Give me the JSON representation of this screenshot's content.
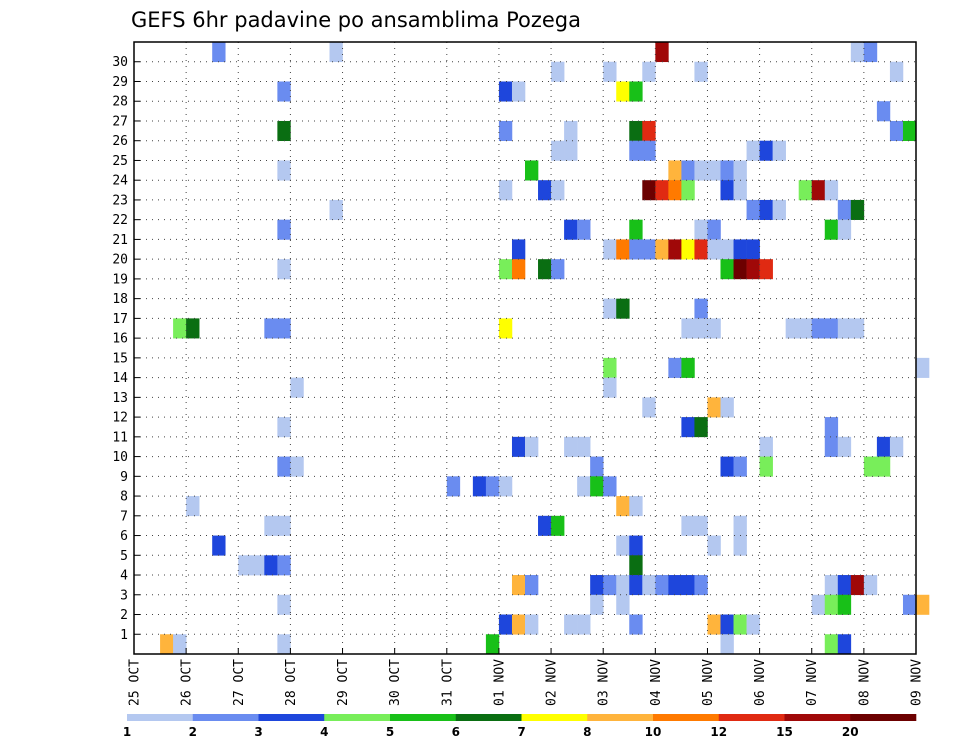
{
  "chart_data": {
    "type": "heatmap",
    "title": "GEFS 6hr padavine po ansamblima Pozega",
    "x_tick_labels": [
      "25 OCT",
      "26 OCT",
      "27 OCT",
      "28 OCT",
      "29 OCT",
      "30 OCT",
      "31 OCT",
      "01 NOV",
      "02 NOV",
      "03 NOV",
      "04 NOV",
      "05 NOV",
      "06 NOV",
      "07 NOV",
      "08 NOV",
      "09 NOV"
    ],
    "y_tick_labels": [
      "1",
      "2",
      "3",
      "4",
      "5",
      "6",
      "7",
      "8",
      "9",
      "10",
      "11",
      "12",
      "13",
      "14",
      "15",
      "16",
      "17",
      "18",
      "19",
      "20",
      "21",
      "22",
      "23",
      "24",
      "25",
      "26",
      "27",
      "28",
      "29",
      "30"
    ],
    "steps_per_day": 4,
    "grid": true,
    "colorbar": {
      "bounds": [
        1,
        2,
        3,
        4,
        5,
        6,
        7,
        8,
        10,
        12,
        15,
        20
      ],
      "labels": [
        "1",
        "2",
        "3",
        "4",
        "5",
        "6",
        "7",
        "8",
        "10",
        "12",
        "15",
        "20"
      ],
      "colors": [
        "#b4c8f0",
        "#6a8cf0",
        "#1e46dc",
        "#78ee5a",
        "#18c018",
        "#0a6e12",
        "#ffff00",
        "#ffb43c",
        "#ff7a00",
        "#e02a12",
        "#a00808",
        "#6c0000"
      ]
    },
    "cells": [
      {
        "member": 30,
        "step": 6,
        "level": 1
      },
      {
        "member": 30,
        "step": 15,
        "level": 0
      },
      {
        "member": 30,
        "step": 40,
        "level": 10
      },
      {
        "member": 30,
        "step": 55,
        "level": 0
      },
      {
        "member": 30,
        "step": 56,
        "level": 1
      },
      {
        "member": 29,
        "step": 32,
        "level": 0
      },
      {
        "member": 29,
        "step": 36,
        "level": 0
      },
      {
        "member": 29,
        "step": 39,
        "level": 0
      },
      {
        "member": 29,
        "step": 43,
        "level": 0
      },
      {
        "member": 29,
        "step": 58,
        "level": 0
      },
      {
        "member": 28,
        "step": 11,
        "level": 1
      },
      {
        "member": 28,
        "step": 28,
        "level": 2
      },
      {
        "member": 28,
        "step": 29,
        "level": 0
      },
      {
        "member": 28,
        "step": 37,
        "level": 6
      },
      {
        "member": 28,
        "step": 38,
        "level": 4
      },
      {
        "member": 27,
        "step": 57,
        "level": 1
      },
      {
        "member": 26,
        "step": 11,
        "level": 5
      },
      {
        "member": 26,
        "step": 28,
        "level": 1
      },
      {
        "member": 26,
        "step": 33,
        "level": 0
      },
      {
        "member": 26,
        "step": 38,
        "level": 5
      },
      {
        "member": 26,
        "step": 39,
        "level": 9
      },
      {
        "member": 26,
        "step": 58,
        "level": 1
      },
      {
        "member": 26,
        "step": 59,
        "level": 4
      },
      {
        "member": 25,
        "step": 32,
        "level": 0
      },
      {
        "member": 25,
        "step": 33,
        "level": 0
      },
      {
        "member": 25,
        "step": 38,
        "level": 1
      },
      {
        "member": 25,
        "step": 39,
        "level": 1
      },
      {
        "member": 25,
        "step": 47,
        "level": 0
      },
      {
        "member": 25,
        "step": 48,
        "level": 2
      },
      {
        "member": 25,
        "step": 49,
        "level": 0
      },
      {
        "member": 24,
        "step": 11,
        "level": 0
      },
      {
        "member": 24,
        "step": 30,
        "level": 4
      },
      {
        "member": 24,
        "step": 41,
        "level": 7
      },
      {
        "member": 24,
        "step": 42,
        "level": 1
      },
      {
        "member": 24,
        "step": 43,
        "level": 0
      },
      {
        "member": 24,
        "step": 44,
        "level": 0
      },
      {
        "member": 24,
        "step": 45,
        "level": 1
      },
      {
        "member": 24,
        "step": 46,
        "level": 0
      },
      {
        "member": 23,
        "step": 28,
        "level": 0
      },
      {
        "member": 23,
        "step": 31,
        "level": 2
      },
      {
        "member": 23,
        "step": 32,
        "level": 0
      },
      {
        "member": 23,
        "step": 39,
        "level": 11
      },
      {
        "member": 23,
        "step": 40,
        "level": 9
      },
      {
        "member": 23,
        "step": 41,
        "level": 8
      },
      {
        "member": 23,
        "step": 42,
        "level": 3
      },
      {
        "member": 23,
        "step": 45,
        "level": 2
      },
      {
        "member": 23,
        "step": 46,
        "level": 0
      },
      {
        "member": 23,
        "step": 51,
        "level": 3
      },
      {
        "member": 23,
        "step": 52,
        "level": 10
      },
      {
        "member": 23,
        "step": 53,
        "level": 0
      },
      {
        "member": 22,
        "step": 15,
        "level": 0
      },
      {
        "member": 22,
        "step": 47,
        "level": 1
      },
      {
        "member": 22,
        "step": 48,
        "level": 2
      },
      {
        "member": 22,
        "step": 49,
        "level": 0
      },
      {
        "member": 22,
        "step": 54,
        "level": 1
      },
      {
        "member": 22,
        "step": 55,
        "level": 5
      },
      {
        "member": 21,
        "step": 11,
        "level": 1
      },
      {
        "member": 21,
        "step": 33,
        "level": 2
      },
      {
        "member": 21,
        "step": 34,
        "level": 1
      },
      {
        "member": 21,
        "step": 38,
        "level": 4
      },
      {
        "member": 21,
        "step": 43,
        "level": 0
      },
      {
        "member": 21,
        "step": 44,
        "level": 1
      },
      {
        "member": 21,
        "step": 53,
        "level": 4
      },
      {
        "member": 21,
        "step": 54,
        "level": 0
      },
      {
        "member": 20,
        "step": 29,
        "level": 2
      },
      {
        "member": 20,
        "step": 36,
        "level": 0
      },
      {
        "member": 20,
        "step": 37,
        "level": 8
      },
      {
        "member": 20,
        "step": 38,
        "level": 1
      },
      {
        "member": 20,
        "step": 39,
        "level": 1
      },
      {
        "member": 20,
        "step": 40,
        "level": 7
      },
      {
        "member": 20,
        "step": 41,
        "level": 10
      },
      {
        "member": 20,
        "step": 42,
        "level": 6
      },
      {
        "member": 20,
        "step": 43,
        "level": 9
      },
      {
        "member": 20,
        "step": 44,
        "level": 0
      },
      {
        "member": 20,
        "step": 45,
        "level": 0
      },
      {
        "member": 20,
        "step": 46,
        "level": 2
      },
      {
        "member": 20,
        "step": 47,
        "level": 2
      },
      {
        "member": 19,
        "step": 11,
        "level": 0
      },
      {
        "member": 19,
        "step": 28,
        "level": 3
      },
      {
        "member": 19,
        "step": 29,
        "level": 8
      },
      {
        "member": 19,
        "step": 31,
        "level": 5
      },
      {
        "member": 19,
        "step": 32,
        "level": 1
      },
      {
        "member": 19,
        "step": 45,
        "level": 4
      },
      {
        "member": 19,
        "step": 46,
        "level": 11
      },
      {
        "member": 19,
        "step": 47,
        "level": 10
      },
      {
        "member": 19,
        "step": 48,
        "level": 9
      },
      {
        "member": 17,
        "step": 36,
        "level": 0
      },
      {
        "member": 17,
        "step": 37,
        "level": 5
      },
      {
        "member": 17,
        "step": 43,
        "level": 1
      },
      {
        "member": 16,
        "step": 3,
        "level": 3
      },
      {
        "member": 16,
        "step": 4,
        "level": 5
      },
      {
        "member": 16,
        "step": 10,
        "level": 1
      },
      {
        "member": 16,
        "step": 11,
        "level": 1
      },
      {
        "member": 16,
        "step": 28,
        "level": 6
      },
      {
        "member": 16,
        "step": 42,
        "level": 0
      },
      {
        "member": 16,
        "step": 43,
        "level": 0
      },
      {
        "member": 16,
        "step": 44,
        "level": 0
      },
      {
        "member": 16,
        "step": 50,
        "level": 0
      },
      {
        "member": 16,
        "step": 51,
        "level": 0
      },
      {
        "member": 16,
        "step": 52,
        "level": 1
      },
      {
        "member": 16,
        "step": 53,
        "level": 1
      },
      {
        "member": 16,
        "step": 54,
        "level": 0
      },
      {
        "member": 16,
        "step": 55,
        "level": 0
      },
      {
        "member": 14,
        "step": 36,
        "level": 3
      },
      {
        "member": 14,
        "step": 41,
        "level": 1
      },
      {
        "member": 14,
        "step": 42,
        "level": 4
      },
      {
        "member": 14,
        "step": 60,
        "level": 0
      },
      {
        "member": 13,
        "step": 12,
        "level": 0
      },
      {
        "member": 13,
        "step": 36,
        "level": 0
      },
      {
        "member": 12,
        "step": 39,
        "level": 0
      },
      {
        "member": 12,
        "step": 44,
        "level": 7
      },
      {
        "member": 12,
        "step": 45,
        "level": 0
      },
      {
        "member": 11,
        "step": 11,
        "level": 0
      },
      {
        "member": 11,
        "step": 42,
        "level": 2
      },
      {
        "member": 11,
        "step": 43,
        "level": 5
      },
      {
        "member": 11,
        "step": 53,
        "level": 1
      },
      {
        "member": 10,
        "step": 29,
        "level": 2
      },
      {
        "member": 10,
        "step": 30,
        "level": 0
      },
      {
        "member": 10,
        "step": 33,
        "level": 0
      },
      {
        "member": 10,
        "step": 34,
        "level": 0
      },
      {
        "member": 10,
        "step": 48,
        "level": 0
      },
      {
        "member": 10,
        "step": 53,
        "level": 1
      },
      {
        "member": 10,
        "step": 54,
        "level": 0
      },
      {
        "member": 10,
        "step": 57,
        "level": 2
      },
      {
        "member": 10,
        "step": 58,
        "level": 0
      },
      {
        "member": 9,
        "step": 11,
        "level": 1
      },
      {
        "member": 9,
        "step": 12,
        "level": 0
      },
      {
        "member": 9,
        "step": 35,
        "level": 1
      },
      {
        "member": 9,
        "step": 45,
        "level": 2
      },
      {
        "member": 9,
        "step": 46,
        "level": 1
      },
      {
        "member": 9,
        "step": 48,
        "level": 3
      },
      {
        "member": 9,
        "step": 56,
        "level": 3
      },
      {
        "member": 9,
        "step": 57,
        "level": 3
      },
      {
        "member": 8,
        "step": 24,
        "level": 1
      },
      {
        "member": 8,
        "step": 26,
        "level": 2
      },
      {
        "member": 8,
        "step": 27,
        "level": 1
      },
      {
        "member": 8,
        "step": 28,
        "level": 0
      },
      {
        "member": 8,
        "step": 34,
        "level": 0
      },
      {
        "member": 8,
        "step": 35,
        "level": 4
      },
      {
        "member": 8,
        "step": 36,
        "level": 1
      },
      {
        "member": 7,
        "step": 4,
        "level": 0
      },
      {
        "member": 7,
        "step": 37,
        "level": 7
      },
      {
        "member": 7,
        "step": 38,
        "level": 0
      },
      {
        "member": 6,
        "step": 10,
        "level": 0
      },
      {
        "member": 6,
        "step": 11,
        "level": 0
      },
      {
        "member": 6,
        "step": 31,
        "level": 2
      },
      {
        "member": 6,
        "step": 32,
        "level": 4
      },
      {
        "member": 6,
        "step": 42,
        "level": 0
      },
      {
        "member": 6,
        "step": 43,
        "level": 0
      },
      {
        "member": 6,
        "step": 46,
        "level": 0
      },
      {
        "member": 5,
        "step": 6,
        "level": 2
      },
      {
        "member": 5,
        "step": 37,
        "level": 0
      },
      {
        "member": 5,
        "step": 38,
        "level": 2
      },
      {
        "member": 5,
        "step": 44,
        "level": 0
      },
      {
        "member": 5,
        "step": 46,
        "level": 0
      },
      {
        "member": 4,
        "step": 8,
        "level": 0
      },
      {
        "member": 4,
        "step": 9,
        "level": 0
      },
      {
        "member": 4,
        "step": 10,
        "level": 2
      },
      {
        "member": 4,
        "step": 11,
        "level": 1
      },
      {
        "member": 4,
        "step": 38,
        "level": 5
      },
      {
        "member": 3,
        "step": 29,
        "level": 7
      },
      {
        "member": 3,
        "step": 30,
        "level": 1
      },
      {
        "member": 3,
        "step": 35,
        "level": 2
      },
      {
        "member": 3,
        "step": 36,
        "level": 1
      },
      {
        "member": 3,
        "step": 37,
        "level": 0
      },
      {
        "member": 3,
        "step": 38,
        "level": 2
      },
      {
        "member": 3,
        "step": 39,
        "level": 0
      },
      {
        "member": 3,
        "step": 40,
        "level": 1
      },
      {
        "member": 3,
        "step": 41,
        "level": 2
      },
      {
        "member": 3,
        "step": 42,
        "level": 2
      },
      {
        "member": 3,
        "step": 43,
        "level": 1
      },
      {
        "member": 3,
        "step": 53,
        "level": 0
      },
      {
        "member": 3,
        "step": 54,
        "level": 2
      },
      {
        "member": 3,
        "step": 55,
        "level": 10
      },
      {
        "member": 3,
        "step": 56,
        "level": 0
      },
      {
        "member": 2,
        "step": 11,
        "level": 0
      },
      {
        "member": 2,
        "step": 35,
        "level": 0
      },
      {
        "member": 2,
        "step": 37,
        "level": 0
      },
      {
        "member": 2,
        "step": 52,
        "level": 0
      },
      {
        "member": 2,
        "step": 53,
        "level": 3
      },
      {
        "member": 2,
        "step": 54,
        "level": 4
      },
      {
        "member": 2,
        "step": 59,
        "level": 1
      },
      {
        "member": 2,
        "step": 60,
        "level": 7
      },
      {
        "member": 1,
        "step": 28,
        "level": 2
      },
      {
        "member": 1,
        "step": 29,
        "level": 7
      },
      {
        "member": 1,
        "step": 30,
        "level": 0
      },
      {
        "member": 1,
        "step": 33,
        "level": 0
      },
      {
        "member": 1,
        "step": 34,
        "level": 0
      },
      {
        "member": 1,
        "step": 38,
        "level": 1
      },
      {
        "member": 1,
        "step": 44,
        "level": 7
      },
      {
        "member": 1,
        "step": 45,
        "level": 2
      },
      {
        "member": 1,
        "step": 46,
        "level": 3
      },
      {
        "member": 1,
        "step": 47,
        "level": 0
      },
      {
        "member": 0,
        "step": 2,
        "level": 7
      },
      {
        "member": 0,
        "step": 3,
        "level": 0
      },
      {
        "member": 0,
        "step": 11,
        "level": 0
      },
      {
        "member": 0,
        "step": 27,
        "level": 4
      },
      {
        "member": 0,
        "step": 45,
        "level": 0
      },
      {
        "member": 0,
        "step": 53,
        "level": 3
      },
      {
        "member": 0,
        "step": 54,
        "level": 2
      }
    ]
  }
}
